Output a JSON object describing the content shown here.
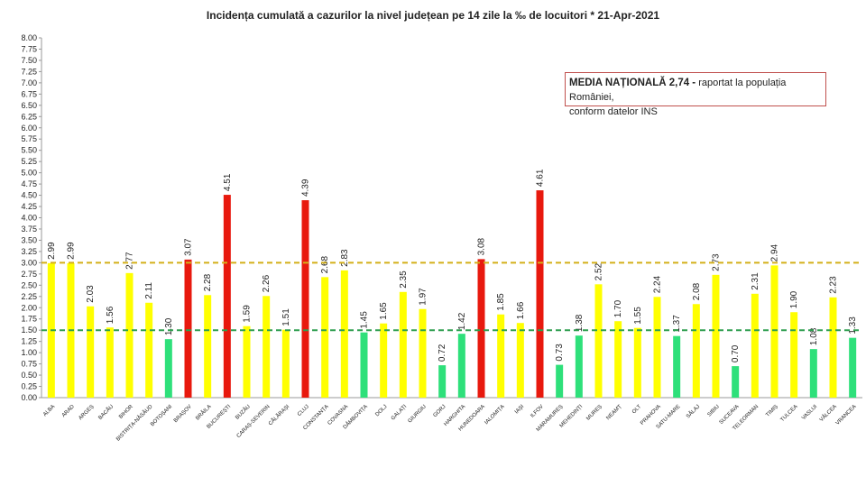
{
  "chart_data": {
    "type": "bar",
    "title": "Incidența cumulată a cazurilor la nivel județean pe 14 zile la ‰ de locuitori * 21-Apr-2021",
    "categories": [
      "ALBA",
      "ARAD",
      "ARGEȘ",
      "BACĂU",
      "BIHOR",
      "BISTRIȚA-NĂSĂUD",
      "BOTOȘANI",
      "BRAȘOV",
      "BRĂILA",
      "BUCUREȘTI",
      "BUZĂU",
      "CARAȘ-SEVERIN",
      "CĂLĂRAȘI",
      "CLUJ",
      "CONSTANȚA",
      "COVASNA",
      "DÂMBOVIȚA",
      "DOLJ",
      "GALAȚI",
      "GIURGIU",
      "GORJ",
      "HARGHITA",
      "HUNEDOARA",
      "IALOMIȚA",
      "IAȘI",
      "ILFOV",
      "MARAMUREȘ",
      "MEHEDINȚI",
      "MUREȘ",
      "NEAMȚ",
      "OLT",
      "PRAHOVA",
      "SATU-MARE",
      "SĂLAJ",
      "SIBIU",
      "SUCEAVA",
      "TELEORMAN",
      "TIMIȘ",
      "TULCEA",
      "VASLUI",
      "VÂLCEA",
      "VRANCEA"
    ],
    "values": [
      2.99,
      2.99,
      2.03,
      1.56,
      2.77,
      2.11,
      1.3,
      3.07,
      2.28,
      4.51,
      1.59,
      2.26,
      1.51,
      4.39,
      2.68,
      2.83,
      1.45,
      1.65,
      2.35,
      1.97,
      0.72,
      1.42,
      3.08,
      1.85,
      1.66,
      4.61,
      0.73,
      1.38,
      2.52,
      1.7,
      1.55,
      2.24,
      1.37,
      2.08,
      2.73,
      0.7,
      2.31,
      2.94,
      1.9,
      1.08,
      2.23,
      1.33
    ],
    "value_labels": [
      "2.99",
      "2.99",
      "2.03",
      "1.56",
      "2.77",
      "2.11",
      "1.30",
      "3.07",
      "2.28",
      "4.51",
      "1.59",
      "2.26",
      "1.51",
      "4.39",
      "2.68",
      "2.83",
      "1.45",
      "1.65",
      "2.35",
      "1.97",
      "0.72",
      "1.42",
      "3.08",
      "1.85",
      "1.66",
      "4.61",
      "0.73",
      "1.38",
      "2.52",
      "1.70",
      "1.55",
      "2.24",
      "1.37",
      "2.08",
      "2.73",
      "0.70",
      "2.31",
      "2.94",
      "1.90",
      "1.08",
      "2.23",
      "1.33"
    ],
    "ylim": [
      0,
      8
    ],
    "yticks": [
      "0.00",
      "0.25",
      "0.50",
      "0.75",
      "1.00",
      "1.25",
      "1.50",
      "1.75",
      "2.00",
      "2.25",
      "2.50",
      "2.75",
      "3.00",
      "3.25",
      "3.50",
      "3.75",
      "4.00",
      "4.25",
      "4.50",
      "4.75",
      "5.00",
      "5.25",
      "5.50",
      "5.75",
      "6.00",
      "6.25",
      "6.50",
      "6.75",
      "7.00",
      "7.25",
      "7.50",
      "7.75",
      "8.00"
    ],
    "reference_lines": [
      {
        "value": 3.0,
        "color": "#d4b01a",
        "style": "dashed"
      },
      {
        "value": 1.5,
        "color": "#2e9e4f",
        "style": "dashed"
      }
    ],
    "thresholds": {
      "high": 3.0,
      "low": 1.5
    },
    "colors": {
      "high": "#e8190e",
      "medium": "#ffff00",
      "low": "#2ee07a"
    },
    "annotation": {
      "bold": "MEDIA NAȚIONALĂ 2,74 -",
      "text_line1": " raportat la populația României,",
      "text_line2": "conform datelor INS",
      "border_color": "#c0504d"
    },
    "grid": false
  }
}
